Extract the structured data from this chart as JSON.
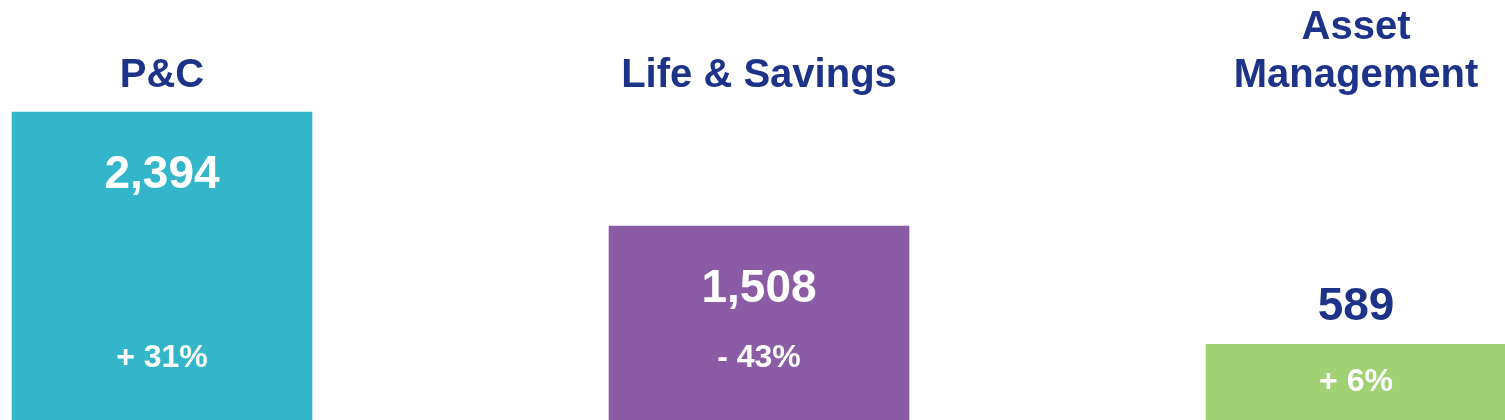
{
  "chart_data": {
    "type": "bar",
    "categories": [
      "P&C",
      "Life & Savings",
      "Asset Management"
    ],
    "values": [
      2394,
      1508,
      589
    ],
    "colors": [
      "#33b6c9",
      "#8c5ba5",
      "#a0d274"
    ],
    "value_labels": [
      "2,394",
      "1,508",
      "589"
    ],
    "annotations": [
      "+ 31%",
      "- 43%",
      "+ 6%"
    ]
  }
}
